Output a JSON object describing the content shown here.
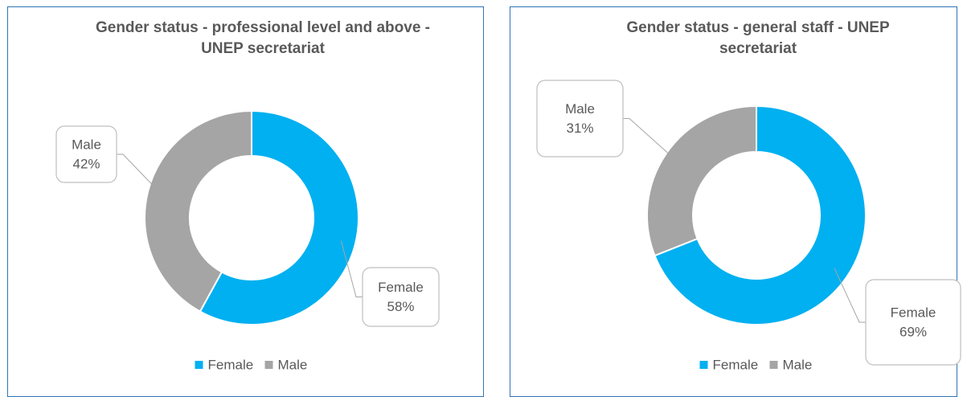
{
  "chart_data": [
    {
      "type": "pie",
      "donut": true,
      "title": "Gender status - professional level and above - UNEP secretariat",
      "categories": [
        "Female",
        "Male"
      ],
      "values": [
        58,
        42
      ],
      "value_labels": [
        "58%",
        "42%"
      ],
      "colors": [
        "#00b0f0",
        "#a5a5a5"
      ],
      "legend": "bottom"
    },
    {
      "type": "pie",
      "donut": true,
      "title": "Gender status - general staff - UNEP secretariat",
      "categories": [
        "Female",
        "Male"
      ],
      "values": [
        69,
        31
      ],
      "value_labels": [
        "69%",
        "31%"
      ],
      "colors": [
        "#00b0f0",
        "#a5a5a5"
      ],
      "legend": "bottom"
    }
  ]
}
